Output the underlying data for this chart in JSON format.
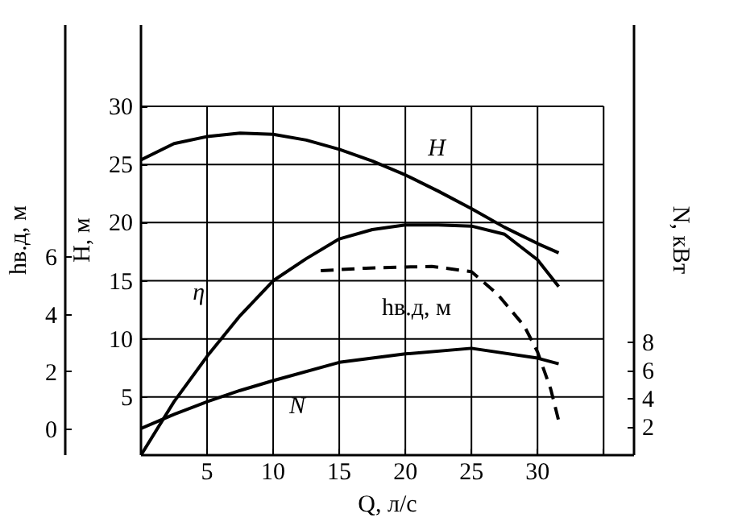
{
  "chart_data": {
    "type": "line",
    "xlabel": "Q, л/с",
    "ylabel": "H, м",
    "y2label": "N, кВт",
    "y3label": "hв.д, м",
    "xlim": [
      0,
      37.3
    ],
    "xticks": [
      5,
      10,
      15,
      20,
      25,
      30,
      {
        "value": 35,
        "label": null
      }
    ],
    "ylim": [
      0,
      37
    ],
    "yticks": [
      5,
      10,
      15,
      20,
      25,
      30
    ],
    "y2lim": [
      0,
      30.6
    ],
    "y2ticks": [
      2,
      4,
      6,
      8
    ],
    "y3lim": [
      -0.9,
      14.1
    ],
    "y3ticks": [
      0,
      2,
      4,
      6
    ],
    "grid": true,
    "series": [
      {
        "name": "H",
        "color": "#000000",
        "x": [
          0,
          2.5,
          5,
          7.5,
          10,
          12.5,
          15,
          17.5,
          20,
          22.5,
          25,
          27.5,
          30,
          31.6
        ],
        "values": [
          25.4,
          26.8,
          27.4,
          27.7,
          27.6,
          27.1,
          26.3,
          25.3,
          24.1,
          22.7,
          21.2,
          19.6,
          18.2,
          17.4
        ]
      },
      {
        "name": "η",
        "color": "#000000",
        "x": [
          0,
          2.5,
          5,
          7.5,
          10,
          12.5,
          15,
          17.5,
          20,
          22.5,
          25,
          27.5,
          30,
          31.6
        ],
        "values": [
          0,
          4.6,
          8.5,
          12,
          15,
          16.9,
          18.6,
          19.4,
          19.8,
          19.8,
          19.7,
          19,
          16.8,
          14.5
        ]
      },
      {
        "name": "N",
        "color": "#000000",
        "axis": "y2",
        "x": [
          0,
          2.5,
          5,
          7.5,
          10,
          15,
          20,
          25,
          30,
          31.6
        ],
        "values": [
          1.9,
          2.9,
          3.8,
          4.6,
          5.3,
          6.6,
          7.2,
          7.6,
          6.9,
          6.5
        ]
      },
      {
        "name": "hв.д, м",
        "color": "#000000",
        "axis": "y3",
        "line_style": "dashed",
        "x": [
          13.6,
          17,
          20,
          22,
          25,
          27,
          29,
          30,
          31,
          31.6
        ],
        "values": [
          5.53,
          5.62,
          5.66,
          5.68,
          5.5,
          4.7,
          3.6,
          2.7,
          1.4,
          0.3
        ]
      }
    ]
  }
}
